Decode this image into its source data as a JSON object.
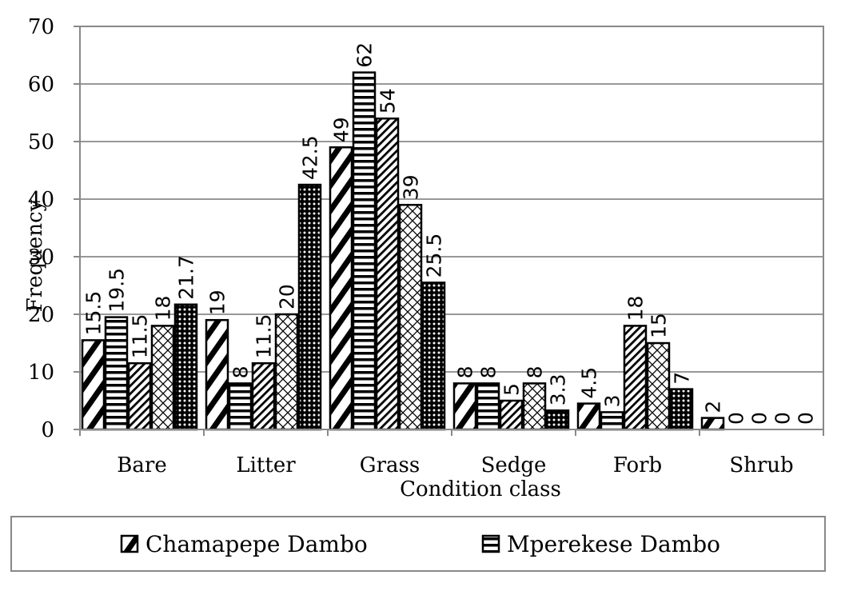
{
  "chart_data": {
    "type": "bar",
    "title": "",
    "xlabel": "Condition class",
    "ylabel": "Frequency",
    "ylim": [
      0,
      70
    ],
    "yticks": [
      0,
      10,
      20,
      30,
      40,
      50,
      60,
      70
    ],
    "grid": true,
    "categories": [
      "Bare",
      "Litter",
      "Grass",
      "Sedge",
      "Forb",
      "Shrub"
    ],
    "series": [
      {
        "name": "Chamapepe Dambo",
        "values": [
          15.5,
          19,
          49,
          8,
          4.5,
          2
        ],
        "labels": [
          "15.5",
          "19",
          "49",
          "8",
          "4.5",
          "2"
        ]
      },
      {
        "name": "Mperekese Dambo",
        "values": [
          19.5,
          8,
          62,
          8,
          3,
          0
        ],
        "labels": [
          "19.5",
          "8",
          "62",
          "8",
          "3",
          "0"
        ]
      },
      {
        "name": "",
        "values": [
          11.5,
          11.5,
          54,
          5,
          18,
          0
        ],
        "labels": [
          "11.5",
          "11.5",
          "54",
          "5",
          "18",
          "0"
        ]
      },
      {
        "name": "",
        "values": [
          18,
          20,
          39,
          8,
          15,
          0
        ],
        "labels": [
          "18",
          "20",
          "39",
          "8",
          "15",
          "0"
        ]
      },
      {
        "name": "",
        "values": [
          21.7,
          42.5,
          25.5,
          3.3,
          7,
          0
        ],
        "labels": [
          "21.7",
          "42.5",
          "25.5",
          "3.3",
          "7",
          "0"
        ]
      }
    ],
    "legend": {
      "position": "bottom",
      "entries": [
        "Chamapepe Dambo",
        "Mperekese Dambo"
      ]
    }
  }
}
